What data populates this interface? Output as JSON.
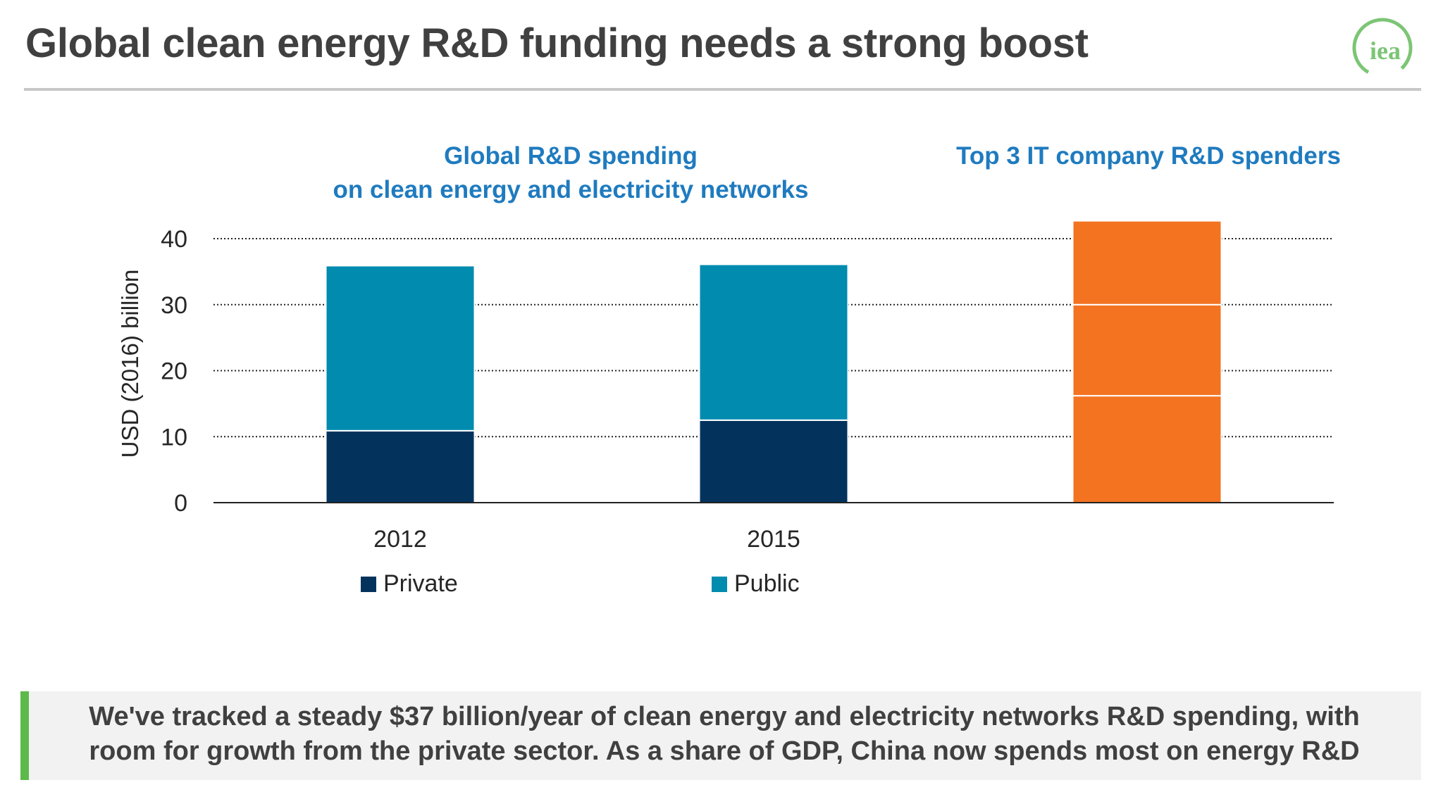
{
  "title": "Global clean energy R&D funding needs a strong boost",
  "logo": {
    "text": "iea",
    "icon": "iea-logo",
    "color": "#7cc576"
  },
  "panels": {
    "left_heading": [
      "Global R&D spending",
      "on clean energy and electricity networks"
    ],
    "right_heading": [
      "Top 3 IT company R&D spenders"
    ]
  },
  "chart_data": {
    "type": "bar",
    "stacked": true,
    "ylabel": "USD (2016) billion",
    "ylim": [
      0,
      40
    ],
    "yticks": [
      0,
      10,
      20,
      30,
      40
    ],
    "grid": true,
    "categories": [
      "2012",
      "2015",
      ""
    ],
    "series": [
      {
        "name": "Private",
        "color": "#03335c",
        "values": [
          10.9,
          12.5,
          null
        ]
      },
      {
        "name": "Public",
        "color": "#008baf",
        "values": [
          25.0,
          23.6,
          null
        ]
      },
      {
        "name": "",
        "color": "#f47321",
        "values": [
          null,
          null,
          16.2
        ]
      },
      {
        "name": "",
        "color": "#f47321",
        "values": [
          null,
          null,
          13.8
        ]
      },
      {
        "name": "",
        "color": "#f47321",
        "values": [
          null,
          null,
          12.7
        ]
      }
    ],
    "legend_placement": "bottom"
  },
  "legend": [
    {
      "label": "Private",
      "color": "#03335c"
    },
    {
      "label": "Public",
      "color": "#008baf"
    }
  ],
  "message": {
    "lines": [
      "We've tracked a steady $37 billion/year of clean energy and electricity networks R&D spending, with",
      "room for growth from the private sector. As a share of GDP, China now spends most on energy R&D"
    ],
    "accent_color": "#5db94a"
  }
}
